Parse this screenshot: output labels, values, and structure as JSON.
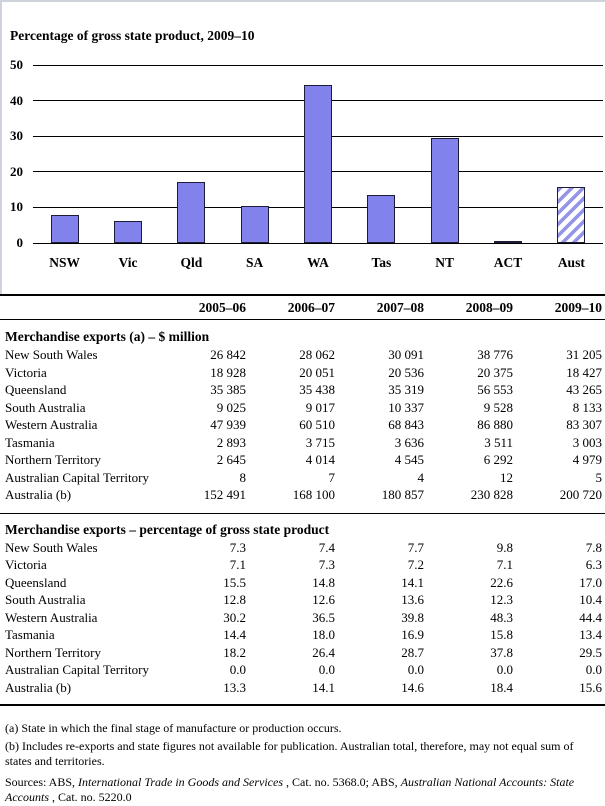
{
  "chart_data": {
    "type": "bar",
    "title": "Percentage of gross state product, 2009–10",
    "categories": [
      "NSW",
      "Vic",
      "Qld",
      "SA",
      "WA",
      "Tas",
      "NT",
      "ACT",
      "Aust"
    ],
    "values": [
      7.8,
      6.3,
      17.0,
      10.4,
      44.4,
      13.4,
      29.5,
      0.0,
      15.6
    ],
    "xlabel": "",
    "ylabel": "",
    "ylim": [
      0,
      50
    ],
    "yticks": [
      0,
      10,
      20,
      30,
      40,
      50
    ],
    "grid": true,
    "legend_position": "none",
    "bar_color": "#8282ec",
    "hatch_color": "#9494e8",
    "bar_border_color": "#1d1d38",
    "hatched_categories": [
      "Aust"
    ]
  },
  "table": {
    "column_headers": [
      "2005–06",
      "2006–07",
      "2007–08",
      "2008–09",
      "2009–10"
    ],
    "sections": [
      {
        "title": "Merchandise exports (a) – $ million",
        "rows": [
          {
            "label": "New South Wales",
            "values": [
              "26 842",
              "28 062",
              "30 091",
              "38 776",
              "31 205"
            ]
          },
          {
            "label": "Victoria",
            "values": [
              "18 928",
              "20 051",
              "20 536",
              "20 375",
              "18 427"
            ]
          },
          {
            "label": "Queensland",
            "values": [
              "35 385",
              "35 438",
              "35 319",
              "56 553",
              "43 265"
            ]
          },
          {
            "label": "South Australia",
            "values": [
              "9 025",
              "9 017",
              "10 337",
              "9 528",
              "8 133"
            ]
          },
          {
            "label": "Western Australia",
            "values": [
              "47 939",
              "60 510",
              "68 843",
              "86 880",
              "83 307"
            ]
          },
          {
            "label": "Tasmania",
            "values": [
              "2 893",
              "3 715",
              "3 636",
              "3 511",
              "3 003"
            ]
          },
          {
            "label": "Northern Territory",
            "values": [
              "2 645",
              "4 014",
              "4 545",
              "6 292",
              "4 979"
            ]
          },
          {
            "label": "Australian Capital Territory",
            "values": [
              "8",
              "7",
              "4",
              "12",
              "5"
            ]
          },
          {
            "label": "Australia (b)",
            "values": [
              "152 491",
              "168 100",
              "180 857",
              "230 828",
              "200 720"
            ]
          }
        ]
      },
      {
        "title": "Merchandise exports – percentage of gross state product",
        "rows": [
          {
            "label": "New South Wales",
            "values": [
              "7.3",
              "7.4",
              "7.7",
              "9.8",
              "7.8"
            ]
          },
          {
            "label": "Victoria",
            "values": [
              "7.1",
              "7.3",
              "7.2",
              "7.1",
              "6.3"
            ]
          },
          {
            "label": "Queensland",
            "values": [
              "15.5",
              "14.8",
              "14.1",
              "22.6",
              "17.0"
            ]
          },
          {
            "label": "South Australia",
            "values": [
              "12.8",
              "12.6",
              "13.6",
              "12.3",
              "10.4"
            ]
          },
          {
            "label": "Western Australia",
            "values": [
              "30.2",
              "36.5",
              "39.8",
              "48.3",
              "44.4"
            ]
          },
          {
            "label": "Tasmania",
            "values": [
              "14.4",
              "18.0",
              "16.9",
              "15.8",
              "13.4"
            ]
          },
          {
            "label": "Northern Territory",
            "values": [
              "18.2",
              "26.4",
              "28.7",
              "37.8",
              "29.5"
            ]
          },
          {
            "label": "Australian Capital Territory",
            "values": [
              "0.0",
              "0.0",
              "0.0",
              "0.0",
              "0.0"
            ]
          },
          {
            "label": "Australia (b)",
            "values": [
              "13.3",
              "14.1",
              "14.6",
              "18.4",
              "15.6"
            ]
          }
        ]
      }
    ]
  },
  "footnotes": {
    "a": "(a) State in which the final stage of manufacture or production occurs.",
    "b": "(b) Includes re-exports and state figures not available for publication. Australian total, therefore, may not equal sum of states and territories.",
    "sources_parts": [
      {
        "text": "Sources: ABS, ",
        "italic": false
      },
      {
        "text": "International Trade in Goods and Services",
        "italic": true
      },
      {
        "text": " , Cat. no. 5368.0; ABS, ",
        "italic": false
      },
      {
        "text": "Australian National Accounts: State Accounts",
        "italic": true
      },
      {
        "text": " , Cat. no. 5220.0",
        "italic": false
      }
    ]
  }
}
